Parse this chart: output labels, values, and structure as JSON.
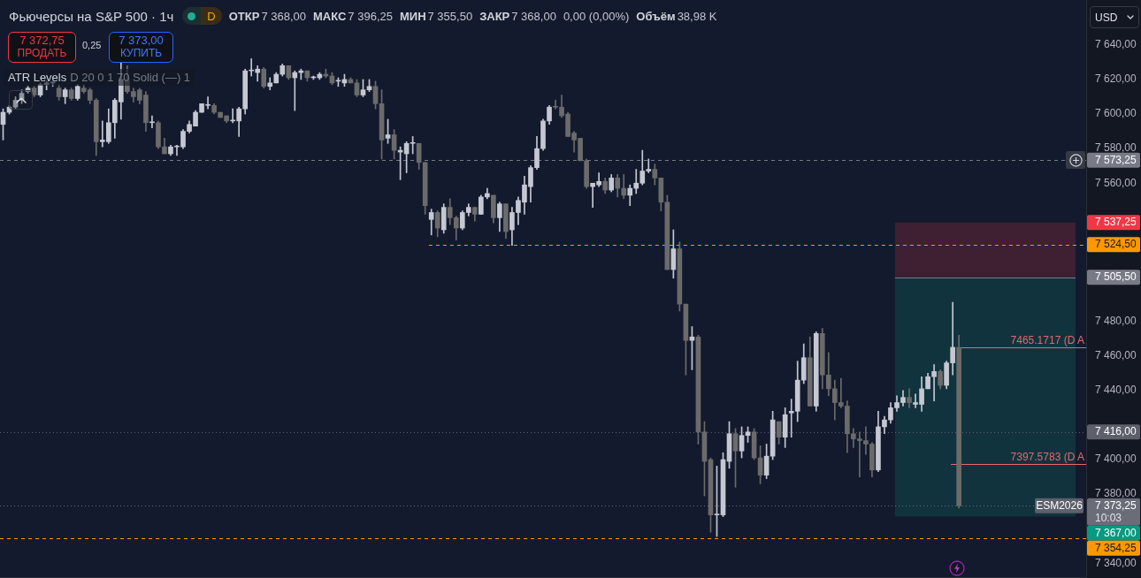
{
  "chart_data": {
    "type": "candlestick",
    "title": "Фьючерсы на S&P 500 · 1ч",
    "categories": [
      null,
      null,
      null,
      null,
      null,
      null,
      null,
      null,
      null,
      null,
      null,
      null,
      null,
      null,
      null,
      null,
      null,
      null,
      null,
      null,
      null,
      null,
      null,
      null,
      null,
      null,
      null,
      null,
      null,
      null,
      null,
      null,
      null,
      null,
      null,
      null,
      null,
      null,
      null,
      null,
      null,
      null,
      null,
      null,
      null,
      null,
      null,
      null,
      null,
      null,
      null,
      null,
      null,
      null,
      null,
      null,
      null,
      null,
      null,
      null,
      null,
      null,
      null,
      null,
      null,
      null,
      null,
      null,
      null,
      null,
      null,
      null,
      null,
      null,
      null,
      null,
      null,
      null,
      null,
      null,
      null,
      null,
      null,
      null,
      null,
      null,
      null,
      null,
      null,
      null,
      null,
      null,
      null,
      null,
      null,
      null,
      null,
      null,
      null,
      null,
      null,
      null,
      null,
      null,
      null,
      null,
      null,
      null,
      null,
      null,
      null,
      null,
      null,
      null,
      null,
      null,
      null,
      null,
      null,
      null,
      null,
      null,
      null,
      null,
      null,
      null,
      null,
      null,
      null,
      null,
      null,
      null,
      null,
      null,
      null,
      null,
      null,
      null,
      null,
      null,
      null,
      null,
      null,
      null,
      null,
      null,
      null,
      null,
      null,
      null,
      null,
      null,
      null,
      null,
      null,
      null,
      null,
      null,
      null,
      null,
      null,
      null,
      null,
      null,
      null,
      null,
      null,
      null,
      null,
      null,
      null,
      null,
      null,
      null,
      null
    ],
    "ohlc": [
      [
        7594,
        7603,
        7585,
        7601
      ],
      [
        7601,
        7605,
        7600,
        7604
      ],
      [
        7604,
        7610,
        7603,
        7608
      ],
      [
        7608,
        7614,
        7606,
        7612
      ],
      [
        7613,
        7616,
        7612,
        7615
      ],
      [
        7615,
        7616,
        7610,
        7611
      ],
      [
        7611,
        7618,
        7610,
        7617
      ],
      [
        7617,
        7619,
        7614,
        7618
      ],
      [
        7618,
        7619,
        7616,
        7618
      ],
      [
        7615,
        7617,
        7608,
        7610
      ],
      [
        7610,
        7615,
        7606,
        7614
      ],
      [
        7614,
        7615,
        7608,
        7609
      ],
      [
        7609,
        7617,
        7608,
        7616
      ],
      [
        7615,
        7617,
        7612,
        7613
      ],
      [
        7614,
        7615,
        7606,
        7608
      ],
      [
        7608,
        7609,
        7576,
        7584
      ],
      [
        7584,
        7596,
        7581,
        7585
      ],
      [
        7584,
        7603,
        7583,
        7595
      ],
      [
        7595,
        7609,
        7586,
        7608
      ],
      [
        7607,
        7630,
        7597,
        7620
      ],
      [
        7620,
        7628,
        7612,
        7613
      ],
      [
        7613,
        7615,
        7607,
        7610
      ],
      [
        7614,
        7615,
        7606,
        7608
      ],
      [
        7611,
        7613,
        7590,
        7595
      ],
      [
        7595,
        7599,
        7592,
        7595
      ],
      [
        7595,
        7596,
        7580,
        7581
      ],
      [
        7581,
        7586,
        7577,
        7577
      ],
      [
        7577,
        7582,
        7576,
        7581
      ],
      [
        7581,
        7582,
        7576,
        7581
      ],
      [
        7581,
        7591,
        7580,
        7590
      ],
      [
        7590,
        7596,
        7589,
        7594
      ],
      [
        7593,
        7602,
        7593,
        7601
      ],
      [
        7601,
        7606,
        7601,
        7606
      ],
      [
        7605,
        7610,
        7603,
        7605
      ],
      [
        7605,
        7606,
        7600,
        7601
      ],
      [
        7601,
        7601,
        7598,
        7598
      ],
      [
        7599,
        7599,
        7595,
        7596
      ],
      [
        7596,
        7603,
        7595,
        7596
      ],
      [
        7596,
        7604,
        7587,
        7603
      ],
      [
        7603,
        7626,
        7600,
        7625
      ],
      [
        7625,
        7632,
        7622,
        7625
      ],
      [
        7624,
        7628,
        7619,
        7626
      ],
      [
        7626,
        7627,
        7615,
        7616
      ],
      [
        7616,
        7621,
        7614,
        7618
      ],
      [
        7618,
        7624,
        7618,
        7623
      ],
      [
        7623,
        7629,
        7622,
        7628
      ],
      [
        7628,
        7628,
        7620,
        7621
      ],
      [
        7621,
        7625,
        7602,
        7624
      ],
      [
        7624,
        7626,
        7620,
        7625
      ],
      [
        7625,
        7625,
        7619,
        7621
      ],
      [
        7621,
        7622,
        7620,
        7621
      ],
      [
        7621,
        7624,
        7620,
        7623
      ],
      [
        7623,
        7626,
        7621,
        7622
      ],
      [
        7622,
        7624,
        7617,
        7618
      ],
      [
        7619,
        7621,
        7616,
        7619
      ],
      [
        7618,
        7623,
        7616,
        7620
      ],
      [
        7620,
        7621,
        7618,
        7618
      ],
      [
        7618,
        7620,
        7610,
        7611
      ],
      [
        7611,
        7620,
        7610,
        7614
      ],
      [
        7614,
        7620,
        7613,
        7616
      ],
      [
        7616,
        7619,
        7603,
        7606
      ],
      [
        7606,
        7614,
        7574,
        7585
      ],
      [
        7586,
        7597,
        7583,
        7588
      ],
      [
        7588,
        7591,
        7574,
        7579
      ],
      [
        7578,
        7581,
        7562,
        7579
      ],
      [
        7577,
        7584,
        7566,
        7583
      ],
      [
        7583,
        7587,
        7577,
        7583
      ],
      [
        7583,
        7583,
        7568,
        7572
      ],
      [
        7572,
        7572,
        7542,
        7547
      ],
      [
        7539,
        7545,
        7530,
        7543
      ],
      [
        7543,
        7544,
        7529,
        7534
      ],
      [
        7533,
        7548,
        7531,
        7546
      ],
      [
        7546,
        7551,
        7536,
        7540
      ],
      [
        7540,
        7541,
        7527,
        7534
      ],
      [
        7534,
        7544,
        7533,
        7543
      ],
      [
        7543,
        7548,
        7541,
        7546
      ],
      [
        7546,
        7546,
        7538,
        7542
      ],
      [
        7542,
        7553,
        7542,
        7552
      ],
      [
        7552,
        7557,
        7551,
        7554
      ],
      [
        7553,
        7553,
        7537,
        7540
      ],
      [
        7540,
        7549,
        7532,
        7548
      ],
      [
        7548,
        7548,
        7528,
        7532
      ],
      [
        7533,
        7546,
        7524,
        7543
      ],
      [
        7543,
        7552,
        7536,
        7550
      ],
      [
        7549,
        7564,
        7542,
        7559
      ],
      [
        7558,
        7570,
        7549,
        7569
      ],
      [
        7569,
        7587,
        7568,
        7580
      ],
      [
        7580,
        7597,
        7579,
        7596
      ],
      [
        7596,
        7605,
        7594,
        7604
      ],
      [
        7604,
        7608,
        7603,
        7604
      ],
      [
        7604,
        7611,
        7598,
        7599
      ],
      [
        7600,
        7601,
        7587,
        7587
      ],
      [
        7589,
        7590,
        7578,
        7585
      ],
      [
        7586,
        7586,
        7573,
        7573
      ],
      [
        7573,
        7574,
        7557,
        7558
      ],
      [
        7558,
        7560,
        7546,
        7560
      ],
      [
        7559,
        7566,
        7558,
        7561
      ],
      [
        7561,
        7563,
        7554,
        7556
      ],
      [
        7556,
        7565,
        7555,
        7563
      ],
      [
        7563,
        7565,
        7552,
        7557
      ],
      [
        7557,
        7565,
        7551,
        7553
      ],
      [
        7553,
        7559,
        7547,
        7557
      ],
      [
        7557,
        7568,
        7554,
        7560
      ],
      [
        7560,
        7579,
        7559,
        7567
      ],
      [
        7567,
        7574,
        7566,
        7568
      ],
      [
        7568,
        7571,
        7559,
        7563
      ],
      [
        7563,
        7563,
        7544,
        7549
      ],
      [
        7549,
        7553,
        7510,
        7510
      ],
      [
        7510,
        7533,
        7505,
        7522
      ],
      [
        7522,
        7526,
        7486,
        7490
      ],
      [
        7490,
        7490,
        7449,
        7469
      ],
      [
        7469,
        7477,
        7452,
        7471
      ],
      [
        7471,
        7472,
        7409,
        7416
      ],
      [
        7416,
        7422,
        7379,
        7399
      ],
      [
        7400,
        7401,
        7358,
        7368
      ],
      [
        7368,
        7396.25,
        7355.5,
        7368
      ],
      [
        7368,
        7404,
        7367,
        7400
      ],
      [
        7399,
        7422,
        7395,
        7415
      ],
      [
        7415,
        7418,
        7384,
        7405
      ],
      [
        7405,
        7419,
        7401,
        7414
      ],
      [
        7414,
        7419,
        7410,
        7416
      ],
      [
        7416,
        7418,
        7400,
        7401
      ],
      [
        7401,
        7408,
        7386,
        7391
      ],
      [
        7391,
        7409,
        7389,
        7402
      ],
      [
        7402,
        7428,
        7400,
        7423
      ],
      [
        7422,
        7422,
        7409,
        7413
      ],
      [
        7413,
        7430,
        7407,
        7426
      ],
      [
        7427,
        7435,
        7413,
        7428
      ],
      [
        7428,
        7457,
        7422,
        7446
      ],
      [
        7446,
        7467,
        7444,
        7459
      ],
      [
        7459,
        7471,
        7431,
        7431
      ],
      [
        7431,
        7474,
        7428,
        7473
      ],
      [
        7473,
        7476,
        7441,
        7449
      ],
      [
        7449,
        7462,
        7437,
        7441
      ],
      [
        7441,
        7446,
        7423,
        7433
      ],
      [
        7433,
        7447,
        7430,
        7431
      ],
      [
        7431,
        7434,
        7404,
        7415
      ],
      [
        7415,
        7418,
        7407,
        7412
      ],
      [
        7412,
        7416,
        7390,
        7411
      ],
      [
        7411,
        7419,
        7403,
        7409
      ],
      [
        7409,
        7410,
        7390,
        7394
      ],
      [
        7394,
        7428,
        7393,
        7419
      ],
      [
        7419,
        7425,
        7415,
        7423
      ],
      [
        7423,
        7433,
        7421,
        7430
      ],
      [
        7430,
        7437,
        7428,
        7433
      ],
      [
        7433,
        7440,
        7431,
        7436
      ],
      [
        7436,
        7441,
        7430,
        7433
      ],
      [
        7432,
        7438,
        7430,
        7433
      ],
      [
        7432,
        7448,
        7428,
        7441
      ],
      [
        7441,
        7450,
        7441,
        7448
      ],
      [
        7448,
        7455,
        7434,
        7451
      ],
      [
        7451,
        7452,
        7441,
        7443
      ],
      [
        7443,
        7457,
        7441,
        7456
      ],
      [
        7456,
        7491,
        7449,
        7465
      ],
      [
        7465,
        7472,
        7372,
        7373.25
      ],
      null,
      null,
      null,
      null,
      null,
      null,
      null,
      null,
      null,
      null,
      null,
      null,
      null,
      null,
      null,
      null,
      null,
      null,
      null,
      null
    ],
    "colors": [
      "#c5c8d1",
      "#c5c8d1",
      "#c5c8d1",
      "#c5c8d1",
      "#c5c8d1",
      "#6b6b6b",
      "#c5c8d1",
      "#c5c8d1",
      "#c5c8d1",
      "#6b6b6b",
      "#c5c8d1",
      "#6b6b6b",
      "#c5c8d1",
      "#6b6b6b",
      "#6b6b6b",
      "#6b6b6b",
      "#c5c8d1",
      "#c5c8d1",
      "#c5c8d1",
      "#c5c8d1",
      "#6b6b6b",
      "#6b6b6b",
      "#6b6b6b",
      "#6b6b6b",
      "#c5c8d1",
      "#6b6b6b",
      "#6b6b6b",
      "#c5c8d1",
      "#c5c8d1",
      "#c5c8d1",
      "#c5c8d1",
      "#c5c8d1",
      "#c5c8d1",
      "#c5c8d1",
      "#6b6b6b",
      "#6b6b6b",
      "#6b6b6b",
      "#c5c8d1",
      "#c5c8d1",
      "#c5c8d1",
      "#c5c8d1",
      "#c5c8d1",
      "#6b6b6b",
      "#c5c8d1",
      "#c5c8d1",
      "#c5c8d1",
      "#6b6b6b",
      "#c5c8d1",
      "#c5c8d1",
      "#6b6b6b",
      "#c5c8d1",
      "#c5c8d1",
      "#6b6b6b",
      "#6b6b6b",
      "#c5c8d1",
      "#c5c8d1",
      "#6b6b6b",
      "#6b6b6b",
      "#c5c8d1",
      "#c5c8d1",
      "#6b6b6b",
      "#6b6b6b",
      "#c5c8d1",
      "#6b6b6b",
      "#c5c8d1",
      "#c5c8d1",
      "#c5c8d1",
      "#6b6b6b",
      "#6b6b6b",
      "#c5c8d1",
      "#6b6b6b",
      "#c5c8d1",
      "#6b6b6b",
      "#6b6b6b",
      "#c5c8d1",
      "#c5c8d1",
      "#6b6b6b",
      "#c5c8d1",
      "#c5c8d1",
      "#6b6b6b",
      "#c5c8d1",
      "#6b6b6b",
      "#c5c8d1",
      "#c5c8d1",
      "#c5c8d1",
      "#c5c8d1",
      "#c5c8d1",
      "#c5c8d1",
      "#c5c8d1",
      "#6b6b6b",
      "#6b6b6b",
      "#6b6b6b",
      "#6b6b6b",
      "#6b6b6b",
      "#6b6b6b",
      "#c5c8d1",
      "#c5c8d1",
      "#6b6b6b",
      "#c5c8d1",
      "#6b6b6b",
      "#6b6b6b",
      "#c5c8d1",
      "#c5c8d1",
      "#c5c8d1",
      "#c5c8d1",
      "#6b6b6b",
      "#6b6b6b",
      "#6b6b6b",
      "#c5c8d1",
      "#6b6b6b",
      "#6b6b6b",
      "#c5c8d1",
      "#6b6b6b",
      "#6b6b6b",
      "#6b6b6b",
      "#c5c8d1",
      "#c5c8d1",
      "#c5c8d1",
      "#6b6b6b",
      "#c5c8d1",
      "#c5c8d1",
      "#6b6b6b",
      "#6b6b6b",
      "#c5c8d1",
      "#c5c8d1",
      "#6b6b6b",
      "#c5c8d1",
      "#c5c8d1",
      "#c5c8d1",
      "#c5c8d1",
      "#6b6b6b",
      "#c5c8d1",
      "#6b6b6b",
      "#6b6b6b",
      "#6b6b6b",
      "#6b6b6b",
      "#6b6b6b",
      "#6b6b6b",
      "#6b6b6b",
      "#6b6b6b",
      "#6b6b6b",
      "#c5c8d1",
      "#c5c8d1",
      "#c5c8d1",
      "#c5c8d1",
      "#c5c8d1",
      "#6b6b6b",
      "#c5c8d1",
      "#c5c8d1",
      "#c5c8d1",
      "#c5c8d1",
      "#6b6b6b",
      "#c5c8d1",
      "#c5c8d1",
      "#6b6b6b",
      null,
      null,
      null,
      null,
      null,
      null,
      null,
      null,
      null,
      null,
      null,
      null,
      null,
      null,
      null,
      null,
      null,
      null,
      null,
      null
    ],
    "ylim": [
      7332,
      7666
    ],
    "yticks": [
      {
        "value": 7340,
        "label": "7 340,00"
      },
      {
        "value": 7380,
        "label": "7 380,00"
      },
      {
        "value": 7400,
        "label": "7 400,00"
      },
      {
        "value": 7440,
        "label": "7 440,00"
      },
      {
        "value": 7460,
        "label": "7 460,00"
      },
      {
        "value": 7480,
        "label": "7 480,00"
      },
      {
        "value": 7560,
        "label": "7 560,00"
      },
      {
        "value": 7580,
        "label": "7 580,00"
      },
      {
        "value": 7600,
        "label": "7 600,00"
      },
      {
        "value": 7620,
        "label": "7 620,00"
      },
      {
        "value": 7640,
        "label": "7 640,00"
      }
    ],
    "tick_labels": "y",
    "ref_lines": [
      {
        "axis": "y",
        "value": 7573.25,
        "label": "7 573,25",
        "color": "#787b86",
        "line_style": "dashed"
      },
      {
        "axis": "y",
        "value": 7524.5,
        "label": "7 524,50",
        "color": "#ff9800",
        "line_style": "dashed"
      },
      {
        "axis": "y",
        "value": 7505.5,
        "label": "7 505,50",
        "color": "#787b86",
        "line_style": "solid"
      },
      {
        "axis": "y",
        "value": 7465.1717,
        "label": "7465.1717 (D A",
        "color": "#e8676b",
        "line_style": "solid"
      },
      {
        "axis": "y",
        "value": 7416,
        "label": "7 416,00",
        "color": "#5d606b",
        "line_style": "dotted"
      },
      {
        "axis": "y",
        "value": 7397.5783,
        "label": "7397.5783 (D A",
        "color": "#e8676b",
        "line_style": "solid"
      },
      {
        "axis": "y",
        "value": 7373.25,
        "label": "7 373,25",
        "color": "#6a6d78",
        "line_style": "dotted"
      },
      {
        "axis": "y",
        "value": 7354.25,
        "label": "7 354,25",
        "color": "#ff9800",
        "line_style": "dashed"
      }
    ],
    "bands": [
      {
        "axis": "y",
        "from": 7505.5,
        "to": 7537.25,
        "label": "7 537,25",
        "color": "#f23645"
      },
      {
        "axis": "y",
        "from": 7367,
        "to": 7505.5,
        "label": "7 367,00",
        "color": "#089981"
      }
    ],
    "annotations": [
      "D",
      "ОТКР",
      "7 368,00",
      "МАКС",
      "7 396,25",
      "МИН",
      "7 355,50",
      "ЗАКР",
      "7 368,00",
      "0,00 (0,00%)",
      "Объём",
      "38,98 K",
      "7 372,75",
      "ПРОДАТЬ",
      "0,25",
      "7 373,00",
      "КУПИТЬ",
      "ATR Levels",
      "D 20 0 1 70 Solid (—) 1",
      "USD",
      "ESM2026",
      "10:03"
    ]
  }
}
